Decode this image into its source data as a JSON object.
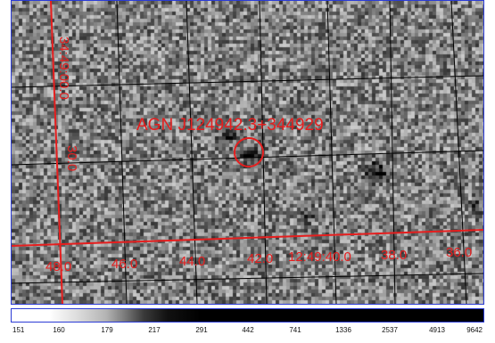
{
  "target_label": "AGN J124942.3+344929",
  "ra_labels": [
    "48.0",
    "46.0",
    "44.0",
    "42.0",
    "12:49:40.0",
    "38.0",
    "36.0"
  ],
  "dec_labels": [
    "34:49:00.0",
    "30.0"
  ],
  "colorbar": {
    "tick_labels": [
      "151",
      "160",
      "179",
      "217",
      "291",
      "442",
      "741",
      "1336",
      "2537",
      "4913",
      "9642"
    ]
  },
  "colors": {
    "overlay_red": "#e61e1e",
    "grid_black": "#000000",
    "frame_blue": "#2b3bd6"
  }
}
